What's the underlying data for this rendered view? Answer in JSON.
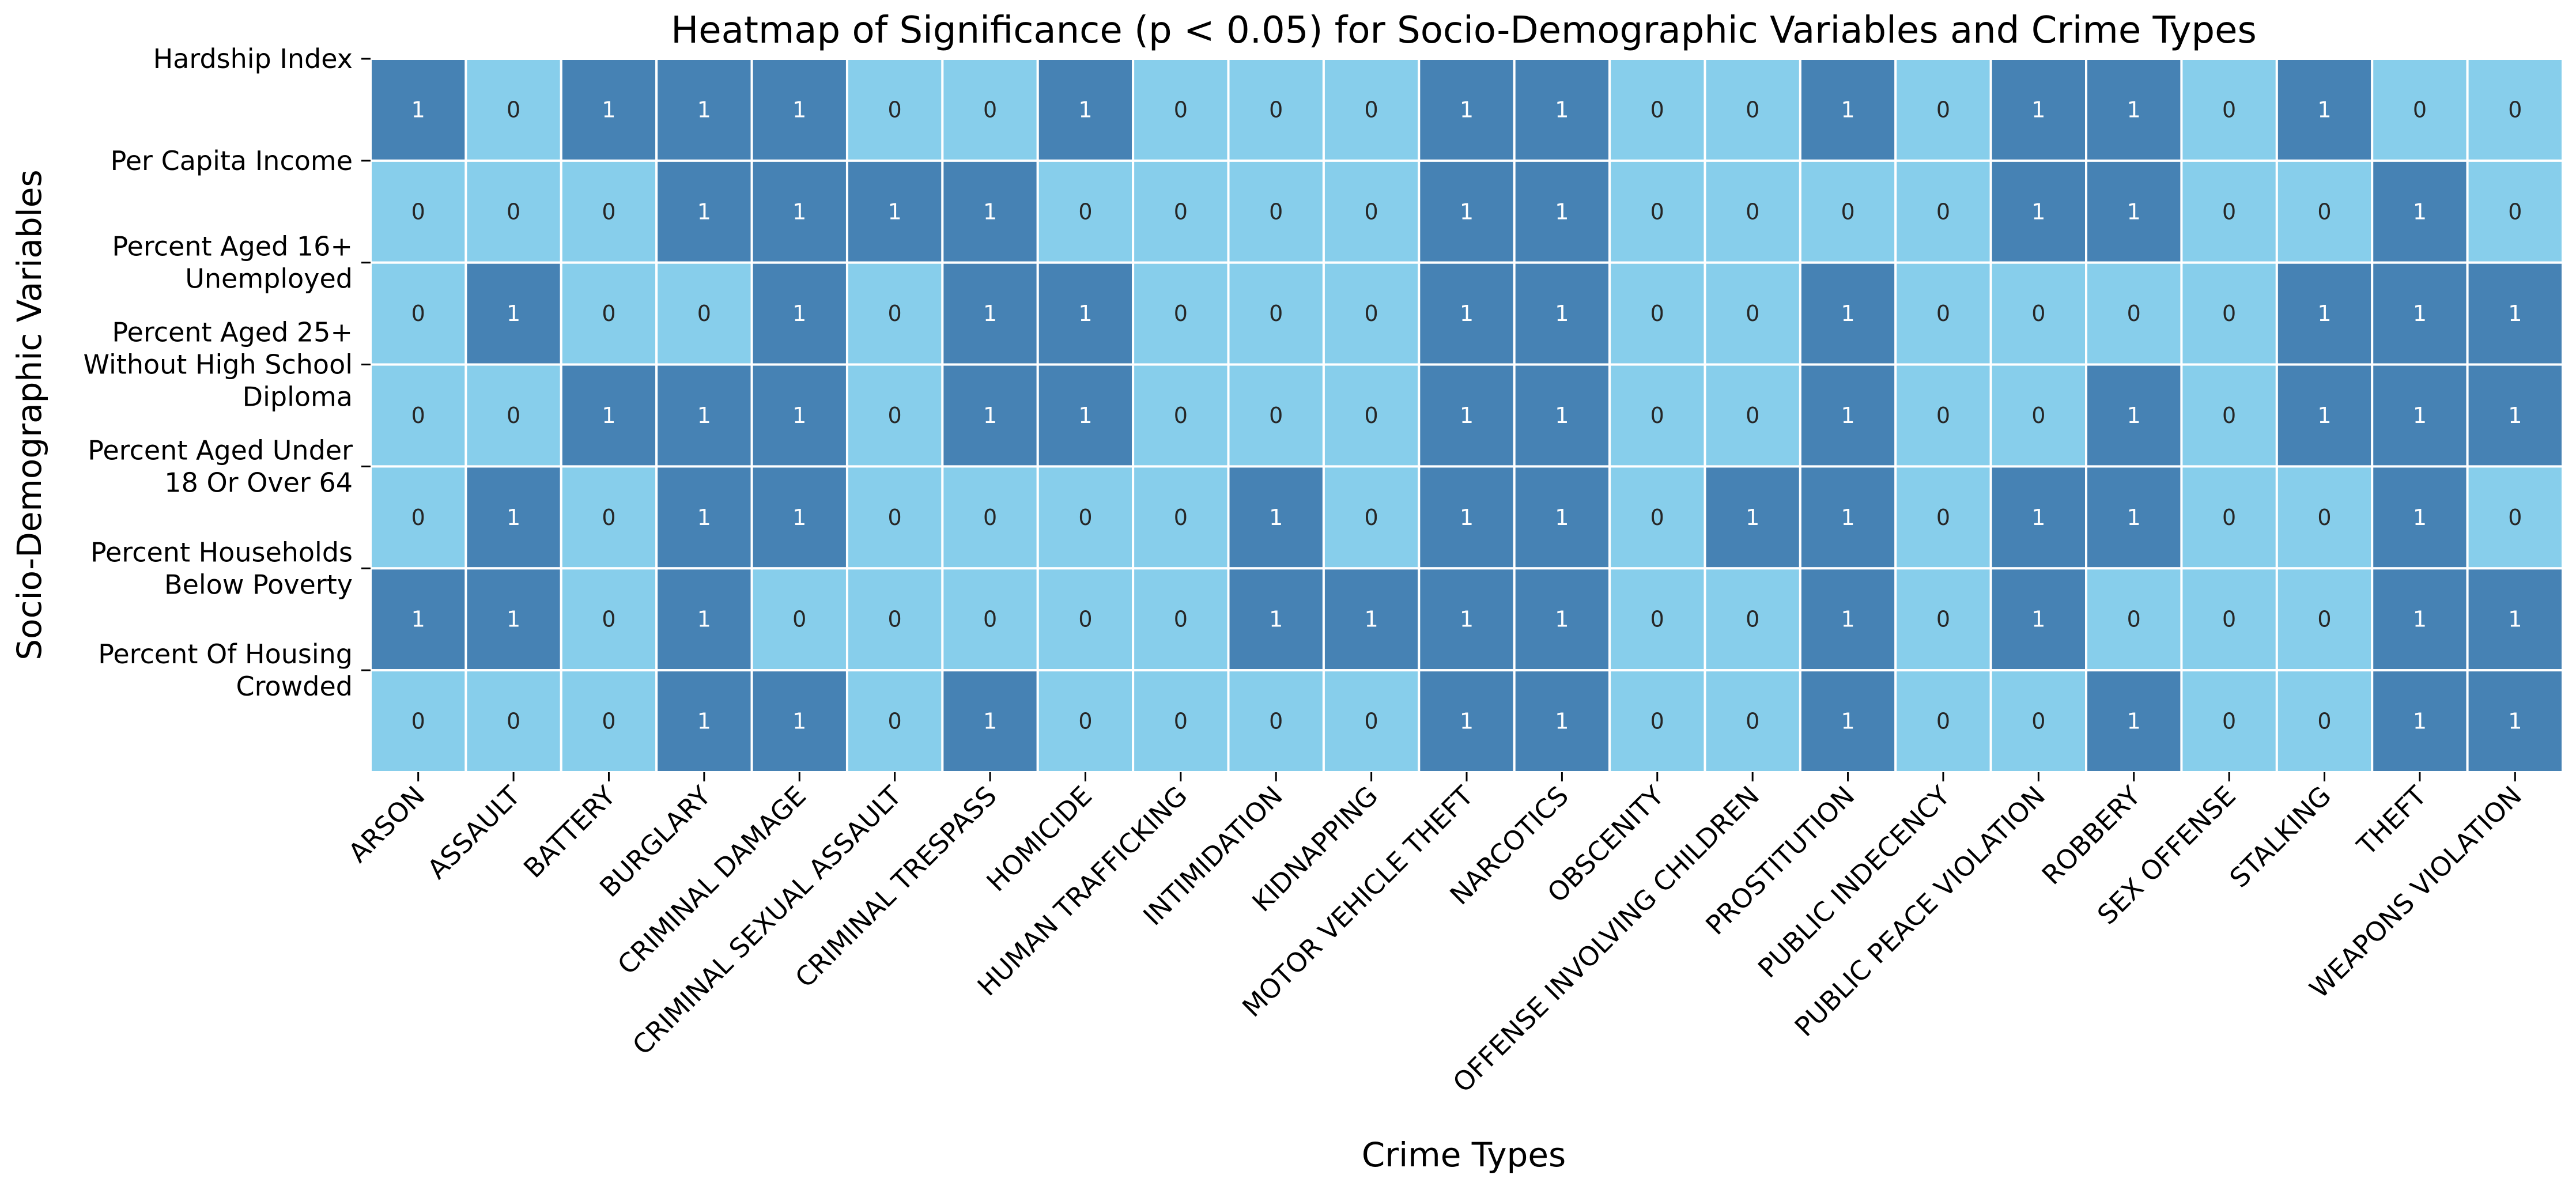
{
  "chart_data": {
    "type": "heatmap",
    "title": "Heatmap of Significance (p < 0.05) for Socio-Demographic Variables and Crime Types",
    "xlabel": "Crime Types",
    "ylabel": "Socio-Demographic Variables",
    "x_categories": [
      "ARSON",
      "ASSAULT",
      "BATTERY",
      "BURGLARY",
      "CRIMINAL DAMAGE",
      "CRIMINAL SEXUAL ASSAULT",
      "CRIMINAL TRESPASS",
      "HOMICIDE",
      "HUMAN TRAFFICKING",
      "INTIMIDATION",
      "KIDNAPPING",
      "MOTOR VEHICLE THEFT",
      "NARCOTICS",
      "OBSCENITY",
      "OFFENSE INVOLVING CHILDREN",
      "PROSTITUTION",
      "PUBLIC INDECENCY",
      "PUBLIC PEACE VIOLATION",
      "ROBBERY",
      "SEX OFFENSE",
      "STALKING",
      "THEFT",
      "WEAPONS VIOLATION"
    ],
    "y_categories": [
      "Hardship Index",
      "Per Capita Income",
      "Percent Aged 16+ Unemployed",
      "Percent Aged 25+ Without High School Diploma",
      "Percent Aged Under 18 Or Over 64",
      "Percent Households Below Poverty",
      "Percent Of Housing Crowded"
    ],
    "y_category_lines": [
      [
        "Hardship Index"
      ],
      [
        "Per Capita Income"
      ],
      [
        "Percent Aged 16+",
        "Unemployed"
      ],
      [
        "Percent Aged 25+",
        "Without High School",
        "Diploma"
      ],
      [
        "Percent Aged Under",
        "18 Or Over 64"
      ],
      [
        "Percent Households",
        "Below Poverty"
      ],
      [
        "Percent Of Housing",
        "Crowded"
      ]
    ],
    "values": [
      [
        1,
        0,
        1,
        1,
        1,
        0,
        0,
        1,
        0,
        0,
        0,
        1,
        1,
        0,
        0,
        1,
        0,
        1,
        1,
        0,
        1,
        0,
        0
      ],
      [
        0,
        0,
        0,
        1,
        1,
        1,
        1,
        0,
        0,
        0,
        0,
        1,
        1,
        0,
        0,
        0,
        0,
        1,
        1,
        0,
        0,
        1,
        0
      ],
      [
        0,
        1,
        0,
        0,
        1,
        0,
        1,
        1,
        0,
        0,
        0,
        1,
        1,
        0,
        0,
        1,
        0,
        0,
        0,
        0,
        1,
        1,
        1
      ],
      [
        0,
        0,
        1,
        1,
        1,
        0,
        1,
        1,
        0,
        0,
        0,
        1,
        1,
        0,
        0,
        1,
        0,
        0,
        1,
        0,
        1,
        1,
        1
      ],
      [
        0,
        1,
        0,
        1,
        1,
        0,
        0,
        0,
        0,
        1,
        0,
        1,
        1,
        0,
        1,
        1,
        0,
        1,
        1,
        0,
        0,
        1,
        0
      ],
      [
        1,
        1,
        0,
        1,
        0,
        0,
        0,
        0,
        0,
        1,
        1,
        1,
        1,
        0,
        0,
        1,
        0,
        1,
        0,
        0,
        0,
        1,
        1
      ],
      [
        0,
        0,
        0,
        1,
        1,
        0,
        1,
        0,
        0,
        0,
        0,
        1,
        1,
        0,
        0,
        1,
        0,
        0,
        1,
        0,
        0,
        1,
        1
      ]
    ],
    "colorscale": {
      "0": "#87ceeb",
      "1": "#4682b4"
    },
    "annotation_colors": {
      "0": "#262626",
      "1": "#ffffff"
    },
    "cell_border_color": "#ffffff",
    "legend": "none",
    "grid": false
  }
}
